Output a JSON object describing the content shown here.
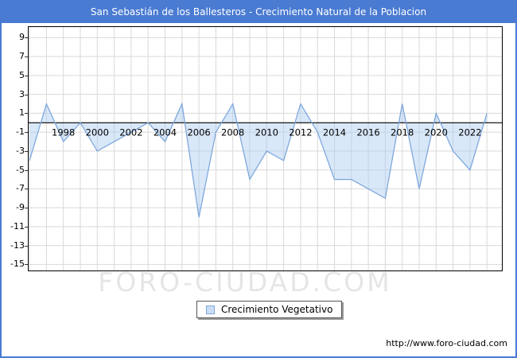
{
  "window": {
    "title": "San Sebastián de los Ballesteros - Crecimiento Natural de la Poblacion"
  },
  "legend": {
    "label": "Crecimiento Vegetativo"
  },
  "footer": {
    "url": "http://www.foro-ciudad.com"
  },
  "watermark": "FORO-CIUDAD.COM",
  "colors": {
    "brand_blue": "#4a7bd2",
    "grid": "#d9d9d9",
    "axis": "#000000",
    "series_line": "#7fa8dc",
    "series_fill": "rgba(170,205,242,0.45)",
    "legend_swatch_fill": "#c9ddf4",
    "title_text": "#ffffff",
    "tick_text": "#000000"
  },
  "chart_data": {
    "type": "area",
    "title": "San Sebastián de los Ballesteros - Crecimiento Natural de la Poblacion",
    "x": [
      1996,
      1997,
      1998,
      1999,
      2000,
      2001,
      2002,
      2003,
      2004,
      2005,
      2006,
      2007,
      2008,
      2009,
      2010,
      2011,
      2012,
      2013,
      2014,
      2015,
      2016,
      2017,
      2018,
      2019,
      2020,
      2021,
      2022,
      2023
    ],
    "series": [
      {
        "name": "Crecimiento Vegetativo",
        "values": [
          -4,
          2,
          -2,
          0,
          -3,
          -2,
          -1,
          0,
          -2,
          2,
          -10,
          -1,
          2,
          -6,
          -3,
          -4,
          2,
          -1,
          -6,
          -6,
          -7,
          -8,
          2,
          -7,
          1,
          -3,
          -5,
          1
        ]
      }
    ],
    "xlabel": "",
    "ylabel": "",
    "ylim": [
      -15.7,
      10.2
    ],
    "yticks": [
      9,
      7,
      5,
      3,
      1,
      -1,
      -3,
      -5,
      -7,
      -9,
      -11,
      -13,
      -15
    ],
    "xtick_labels": [
      1998,
      2000,
      2002,
      2004,
      2006,
      2008,
      2010,
      2012,
      2014,
      2016,
      2018,
      2020,
      2022
    ],
    "grid": true,
    "zero_axis": true,
    "legend_position": "bottom-center"
  }
}
